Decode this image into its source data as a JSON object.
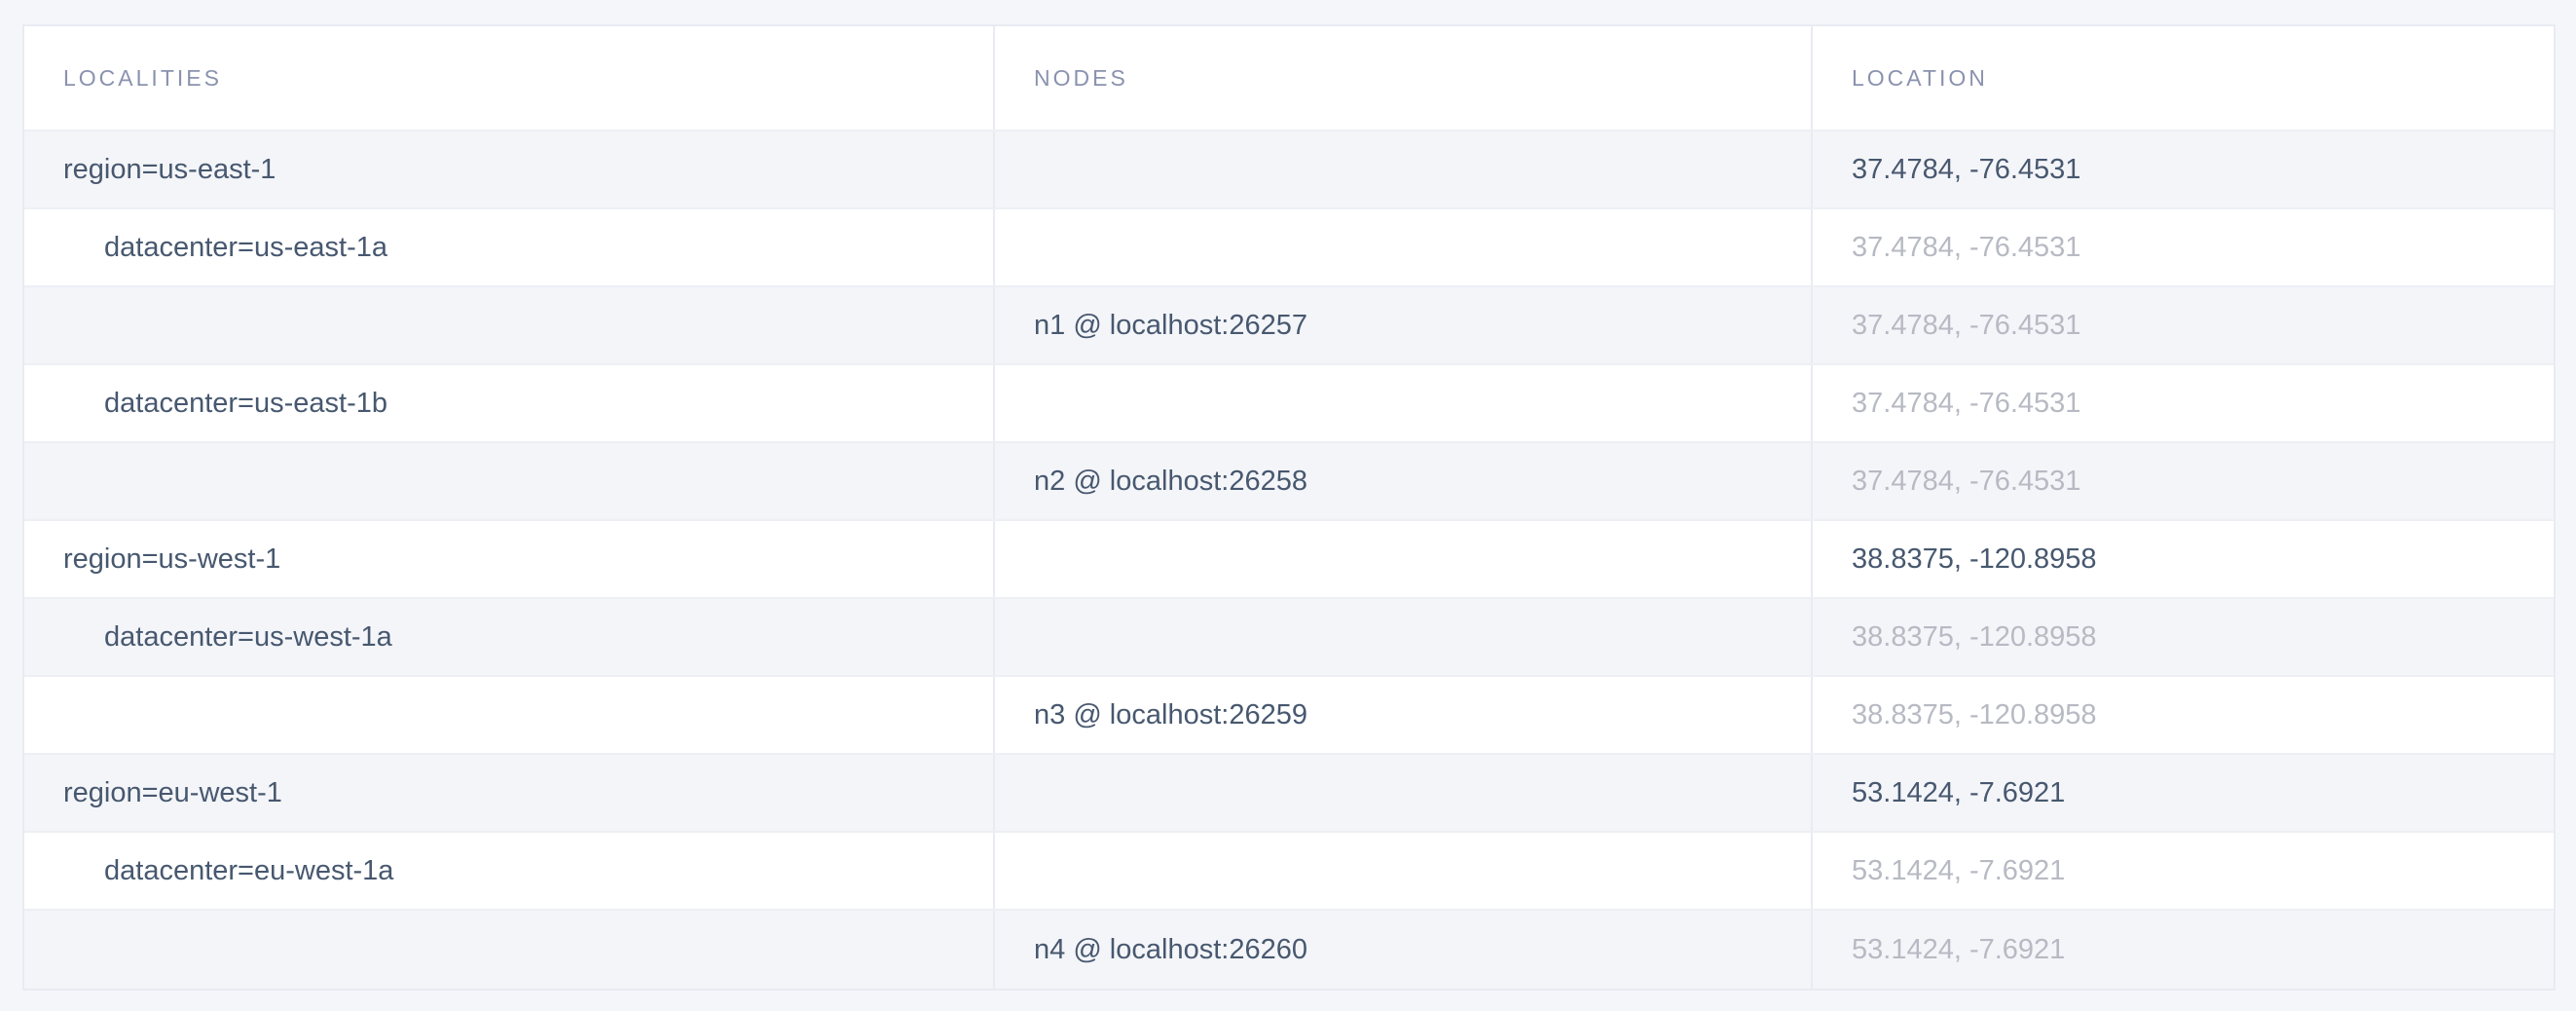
{
  "page": {
    "background": "#f5f6fa"
  },
  "colors": {
    "header_text": "#8a92ae",
    "body_text": "#47586f",
    "muted_text": "#b7bac3",
    "row_shade": "#f4f5f9",
    "border": "#e8ebf1"
  },
  "table": {
    "columns": [
      {
        "label": "LOCALITIES"
      },
      {
        "label": "NODES"
      },
      {
        "label": "LOCATION"
      }
    ],
    "rows": [
      {
        "type": "region",
        "locality": "region=us-east-1",
        "node": "",
        "location": "37.4784, -76.4531",
        "location_emphasis": "dark"
      },
      {
        "type": "datacenter",
        "locality": "datacenter=us-east-1a",
        "node": "",
        "location": "37.4784, -76.4531",
        "location_emphasis": "muted"
      },
      {
        "type": "node",
        "locality": "",
        "node": "n1 @ localhost:26257",
        "location": "37.4784, -76.4531",
        "location_emphasis": "muted"
      },
      {
        "type": "datacenter",
        "locality": "datacenter=us-east-1b",
        "node": "",
        "location": "37.4784, -76.4531",
        "location_emphasis": "muted"
      },
      {
        "type": "node",
        "locality": "",
        "node": "n2 @ localhost:26258",
        "location": "37.4784, -76.4531",
        "location_emphasis": "muted"
      },
      {
        "type": "region",
        "locality": "region=us-west-1",
        "node": "",
        "location": "38.8375, -120.8958",
        "location_emphasis": "dark"
      },
      {
        "type": "datacenter",
        "locality": "datacenter=us-west-1a",
        "node": "",
        "location": "38.8375, -120.8958",
        "location_emphasis": "muted"
      },
      {
        "type": "node",
        "locality": "",
        "node": "n3 @ localhost:26259",
        "location": "38.8375, -120.8958",
        "location_emphasis": "muted"
      },
      {
        "type": "region",
        "locality": "region=eu-west-1",
        "node": "",
        "location": "53.1424, -7.6921",
        "location_emphasis": "dark"
      },
      {
        "type": "datacenter",
        "locality": "datacenter=eu-west-1a",
        "node": "",
        "location": "53.1424, -7.6921",
        "location_emphasis": "muted"
      },
      {
        "type": "node",
        "locality": "",
        "node": "n4 @ localhost:26260",
        "location": "53.1424, -7.6921",
        "location_emphasis": "muted"
      }
    ]
  }
}
